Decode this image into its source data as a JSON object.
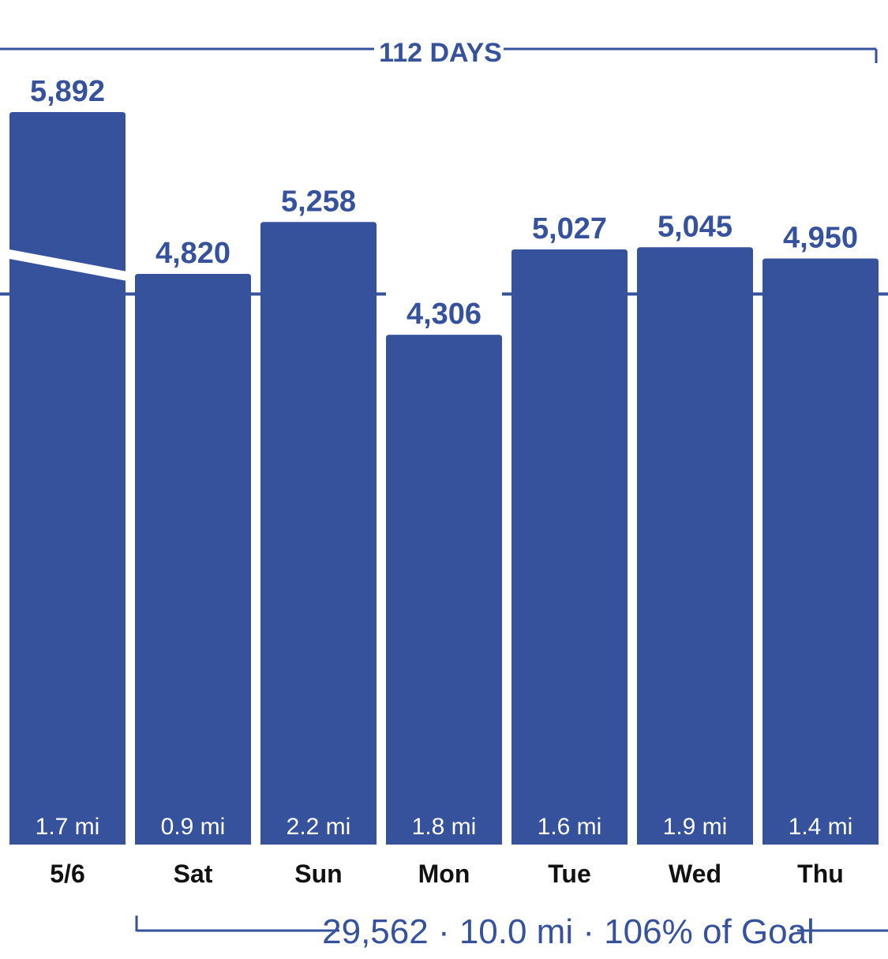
{
  "colors": {
    "bar": "#36529d",
    "text_accent": "#36529d",
    "day_text": "#111111",
    "bar_text": "#ffffff"
  },
  "header": {
    "span_label": "112 DAYS"
  },
  "footer": {
    "summary": "29,562 · 10.0 mi · 106% of Goal"
  },
  "chart_data": {
    "type": "bar",
    "title": "",
    "xlabel": "",
    "ylabel": "",
    "categories": [
      "5/6",
      "Sat",
      "Sun",
      "Mon",
      "Tue",
      "Wed",
      "Thu"
    ],
    "values": [
      5892,
      4820,
      5258,
      4306,
      5027,
      5045,
      4950
    ],
    "value_labels": [
      "5,892",
      "4,820",
      "5,258",
      "4,306",
      "5,027",
      "5,045",
      "4,950"
    ],
    "distance_labels": [
      "1.7 mi",
      "0.9 mi",
      "2.2 mi",
      "1.8 mi",
      "1.6 mi",
      "1.9 mi",
      "1.4 mi"
    ],
    "goal": 4650,
    "first_bar_axis_break": true,
    "ylim": [
      0,
      5300
    ],
    "grid": false,
    "legend": "none"
  }
}
